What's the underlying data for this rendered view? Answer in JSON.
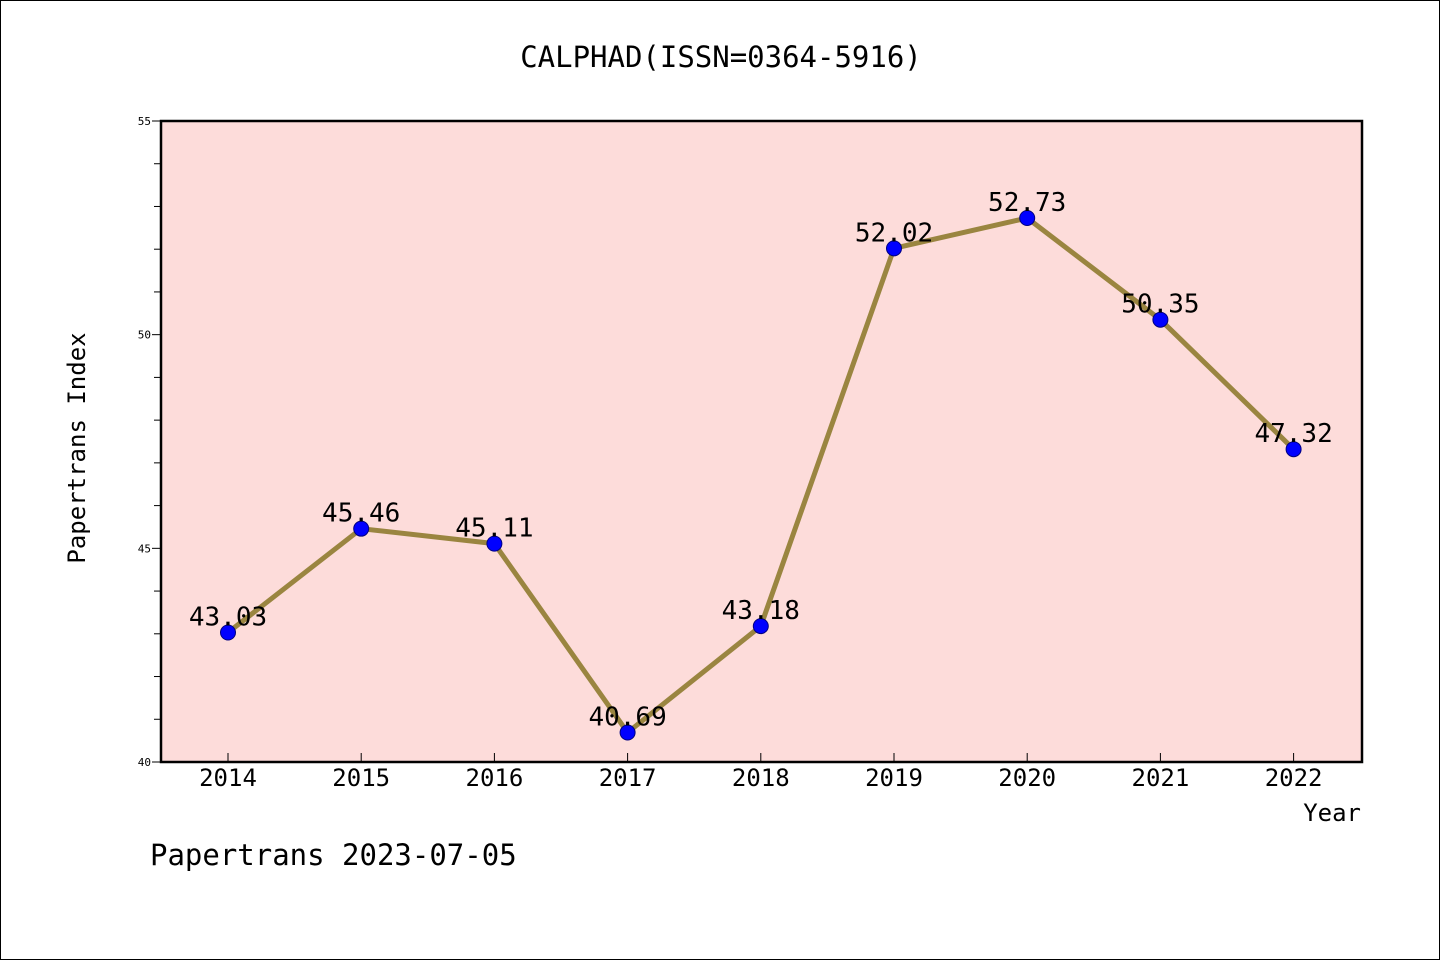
{
  "chart_data": {
    "type": "line",
    "title": "CALPHAD(ISSN=0364-5916)",
    "xlabel": "Year",
    "ylabel": "Papertrans Index",
    "categories": [
      "2014",
      "2015",
      "2016",
      "2017",
      "2018",
      "2019",
      "2020",
      "2021",
      "2022"
    ],
    "series": [
      {
        "values": [
          43.03,
          45.46,
          45.11,
          40.69,
          43.18,
          52.02,
          52.73,
          50.35,
          47.32
        ],
        "labels": [
          "43.03",
          "45.46",
          "45.11",
          "40.69",
          "43.18",
          "52.02",
          "52.73",
          "50.35",
          "47.32"
        ]
      }
    ],
    "ylim": [
      40,
      55
    ],
    "y_major_ticks": [
      40,
      45,
      50,
      55
    ],
    "y_minor_step": 1,
    "grid": false,
    "legend": "none",
    "colors": {
      "plot_background": "#fddcda",
      "line": "#9a8540",
      "marker": "#0000ff",
      "marker_edge": "#000080"
    }
  },
  "footer": {
    "text": "Papertrans 2023-07-05"
  }
}
